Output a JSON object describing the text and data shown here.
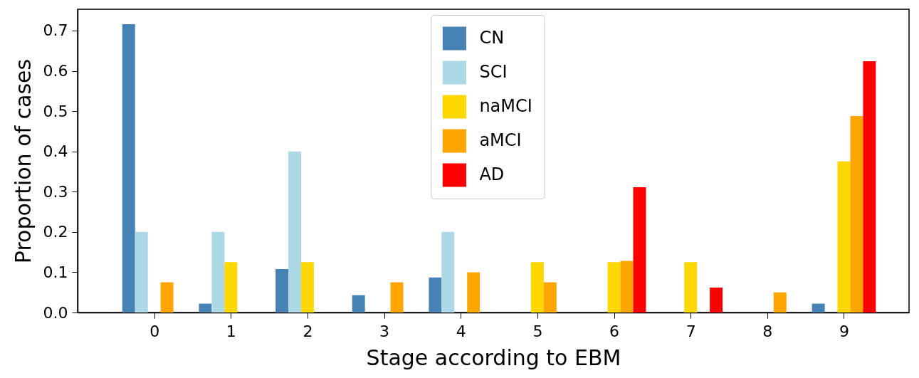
{
  "chart_data": {
    "type": "bar",
    "xlabel": "Stage according to EBM",
    "ylabel": "Proportion of cases",
    "x": [
      0,
      1,
      2,
      3,
      4,
      5,
      6,
      7,
      8,
      9
    ],
    "series": [
      {
        "name": "CN",
        "color": "#4682b4",
        "values": [
          0.716,
          0.022,
          0.108,
          0.043,
          0.087,
          0,
          0,
          0,
          0,
          0.022
        ]
      },
      {
        "name": "SCI",
        "color": "#add8e6",
        "values": [
          0.2,
          0.2,
          0.4,
          0,
          0.2,
          0,
          0,
          0,
          0,
          0
        ]
      },
      {
        "name": "naMCI",
        "color": "#ffd700",
        "values": [
          0,
          0.125,
          0.125,
          0,
          0,
          0.125,
          0.125,
          0.125,
          0,
          0.375
        ]
      },
      {
        "name": "aMCI",
        "color": "#ffa500",
        "values": [
          0.075,
          0,
          0,
          0.075,
          0.1,
          0.075,
          0.128,
          0,
          0.05,
          0.488
        ]
      },
      {
        "name": "AD",
        "color": "#ff0000",
        "values": [
          0,
          0,
          0,
          0,
          0,
          0,
          0.311,
          0.062,
          0,
          0.624
        ]
      }
    ],
    "xlim": [
      -1,
      9.85
    ],
    "ylim": [
      0,
      0.753
    ],
    "xticks": [
      0,
      1,
      2,
      3,
      4,
      5,
      6,
      7,
      8,
      9
    ],
    "yticks": [
      {
        "value": 0,
        "label": "0.0"
      },
      0.1,
      0.2,
      0.3,
      0.4,
      0.5,
      0.6,
      0.7
    ],
    "grid": false,
    "legend": "top"
  }
}
